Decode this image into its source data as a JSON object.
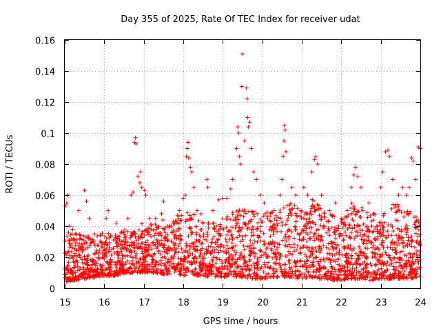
{
  "chart_data": {
    "type": "scatter",
    "title": "Day 355 of 2025, Rate Of TEC Index for receiver udat",
    "xlabel": "GPS time / hours",
    "ylabel": "ROTI / TECUs",
    "xlim": [
      15,
      24
    ],
    "ylim": [
      0,
      0.16
    ],
    "x_ticks": [
      "15",
      "16",
      "17",
      "18",
      "19",
      "20",
      "21",
      "22",
      "23",
      "24"
    ],
    "y_ticks": [
      "0",
      "0.02",
      "0.04",
      "0.06",
      "0.08",
      "0.1",
      "0.12",
      "0.14",
      "0.16"
    ],
    "grid": true,
    "marker": "plus",
    "color": "#ff0000",
    "series": [
      {
        "points": [
          [
            15.02,
            0.053
          ],
          [
            15.05,
            0.055
          ],
          [
            15.08,
            0.06
          ],
          [
            15.12,
            0.04
          ],
          [
            15.2,
            0.038
          ],
          [
            15.3,
            0.035
          ],
          [
            15.35,
            0.05
          ],
          [
            15.5,
            0.063
          ],
          [
            15.55,
            0.056
          ],
          [
            15.62,
            0.045
          ],
          [
            15.7,
            0.03
          ],
          [
            15.75,
            0.035
          ],
          [
            15.9,
            0.034
          ],
          [
            16.05,
            0.045
          ],
          [
            16.1,
            0.05
          ],
          [
            16.3,
            0.042
          ],
          [
            16.45,
            0.03
          ],
          [
            16.6,
            0.045
          ],
          [
            16.68,
            0.06
          ],
          [
            16.73,
            0.062
          ],
          [
            16.77,
            0.094
          ],
          [
            16.79,
            0.097
          ],
          [
            16.8,
            0.093
          ],
          [
            16.85,
            0.072
          ],
          [
            16.9,
            0.068
          ],
          [
            16.92,
            0.075
          ],
          [
            16.95,
            0.065
          ],
          [
            17.02,
            0.063
          ],
          [
            17.05,
            0.06
          ],
          [
            17.15,
            0.045
          ],
          [
            17.3,
            0.045
          ],
          [
            17.45,
            0.048
          ],
          [
            17.5,
            0.056
          ],
          [
            17.6,
            0.04
          ],
          [
            17.75,
            0.043
          ],
          [
            17.9,
            0.05
          ],
          [
            18.0,
            0.058
          ],
          [
            18.05,
            0.06
          ],
          [
            18.08,
            0.085
          ],
          [
            18.1,
            0.09
          ],
          [
            18.12,
            0.094
          ],
          [
            18.14,
            0.084
          ],
          [
            18.18,
            0.078
          ],
          [
            18.22,
            0.075
          ],
          [
            18.27,
            0.065
          ],
          [
            18.35,
            0.05
          ],
          [
            18.45,
            0.048
          ],
          [
            18.6,
            0.07
          ],
          [
            18.62,
            0.065
          ],
          [
            18.75,
            0.05
          ],
          [
            18.9,
            0.057
          ],
          [
            19.0,
            0.058
          ],
          [
            19.1,
            0.058
          ],
          [
            19.2,
            0.064
          ],
          [
            19.25,
            0.07
          ],
          [
            19.35,
            0.09
          ],
          [
            19.38,
            0.104
          ],
          [
            19.4,
            0.1
          ],
          [
            19.42,
            0.085
          ],
          [
            19.45,
            0.08
          ],
          [
            19.48,
            0.13
          ],
          [
            19.5,
            0.151
          ],
          [
            19.55,
            0.095
          ],
          [
            19.6,
            0.129
          ],
          [
            19.62,
            0.122
          ],
          [
            19.63,
            0.11
          ],
          [
            19.65,
            0.104
          ],
          [
            19.68,
            0.107
          ],
          [
            19.72,
            0.09
          ],
          [
            19.78,
            0.075
          ],
          [
            19.85,
            0.07
          ],
          [
            19.95,
            0.06
          ],
          [
            20.05,
            0.055
          ],
          [
            20.3,
            0.05
          ],
          [
            20.45,
            0.06
          ],
          [
            20.5,
            0.07
          ],
          [
            20.53,
            0.085
          ],
          [
            20.55,
            0.095
          ],
          [
            20.56,
            0.105
          ],
          [
            20.58,
            0.102
          ],
          [
            20.6,
            0.088
          ],
          [
            20.75,
            0.065
          ],
          [
            20.85,
            0.06
          ],
          [
            21.05,
            0.065
          ],
          [
            21.15,
            0.06
          ],
          [
            21.25,
            0.075
          ],
          [
            21.32,
            0.083
          ],
          [
            21.35,
            0.085
          ],
          [
            21.4,
            0.08
          ],
          [
            21.5,
            0.06
          ],
          [
            21.7,
            0.05
          ],
          [
            21.85,
            0.055
          ],
          [
            22.0,
            0.045
          ],
          [
            22.15,
            0.05
          ],
          [
            22.25,
            0.065
          ],
          [
            22.32,
            0.073
          ],
          [
            22.36,
            0.078
          ],
          [
            22.42,
            0.072
          ],
          [
            22.5,
            0.065
          ],
          [
            22.55,
            0.05
          ],
          [
            22.7,
            0.055
          ],
          [
            22.9,
            0.04
          ],
          [
            23.0,
            0.065
          ],
          [
            23.05,
            0.075
          ],
          [
            23.12,
            0.088
          ],
          [
            23.18,
            0.089
          ],
          [
            23.22,
            0.085
          ],
          [
            23.3,
            0.07
          ],
          [
            23.45,
            0.06
          ],
          [
            23.55,
            0.065
          ],
          [
            23.65,
            0.06
          ],
          [
            23.72,
            0.065
          ],
          [
            23.78,
            0.084
          ],
          [
            23.82,
            0.082
          ],
          [
            23.88,
            0.07
          ],
          [
            23.95,
            0.091
          ],
          [
            24.0,
            0.09
          ]
        ]
      }
    ],
    "dense_band": [
      [
        15.0,
        0.004,
        0.038
      ],
      [
        15.25,
        0.005,
        0.036
      ],
      [
        15.5,
        0.006,
        0.034
      ],
      [
        15.75,
        0.007,
        0.034
      ],
      [
        16.0,
        0.008,
        0.036
      ],
      [
        16.25,
        0.008,
        0.036
      ],
      [
        16.5,
        0.009,
        0.038
      ],
      [
        16.75,
        0.01,
        0.04
      ],
      [
        17.0,
        0.01,
        0.042
      ],
      [
        17.25,
        0.01,
        0.045
      ],
      [
        17.5,
        0.009,
        0.045
      ],
      [
        17.75,
        0.009,
        0.045
      ],
      [
        18.0,
        0.008,
        0.05
      ],
      [
        18.25,
        0.008,
        0.048
      ],
      [
        18.5,
        0.008,
        0.045
      ],
      [
        18.75,
        0.007,
        0.042
      ],
      [
        19.0,
        0.007,
        0.045
      ],
      [
        19.25,
        0.007,
        0.05
      ],
      [
        19.5,
        0.007,
        0.052
      ],
      [
        19.75,
        0.006,
        0.05
      ],
      [
        20.0,
        0.006,
        0.048
      ],
      [
        20.25,
        0.007,
        0.05
      ],
      [
        20.5,
        0.007,
        0.054
      ],
      [
        20.75,
        0.007,
        0.055
      ],
      [
        21.0,
        0.006,
        0.05
      ],
      [
        21.25,
        0.007,
        0.058
      ],
      [
        21.5,
        0.006,
        0.052
      ],
      [
        21.75,
        0.005,
        0.048
      ],
      [
        22.0,
        0.005,
        0.045
      ],
      [
        22.25,
        0.006,
        0.055
      ],
      [
        22.5,
        0.006,
        0.055
      ],
      [
        22.75,
        0.005,
        0.05
      ],
      [
        23.0,
        0.006,
        0.045
      ],
      [
        23.25,
        0.006,
        0.055
      ],
      [
        23.5,
        0.006,
        0.055
      ],
      [
        23.75,
        0.006,
        0.05
      ],
      [
        24.0,
        0.008,
        0.045
      ]
    ]
  }
}
